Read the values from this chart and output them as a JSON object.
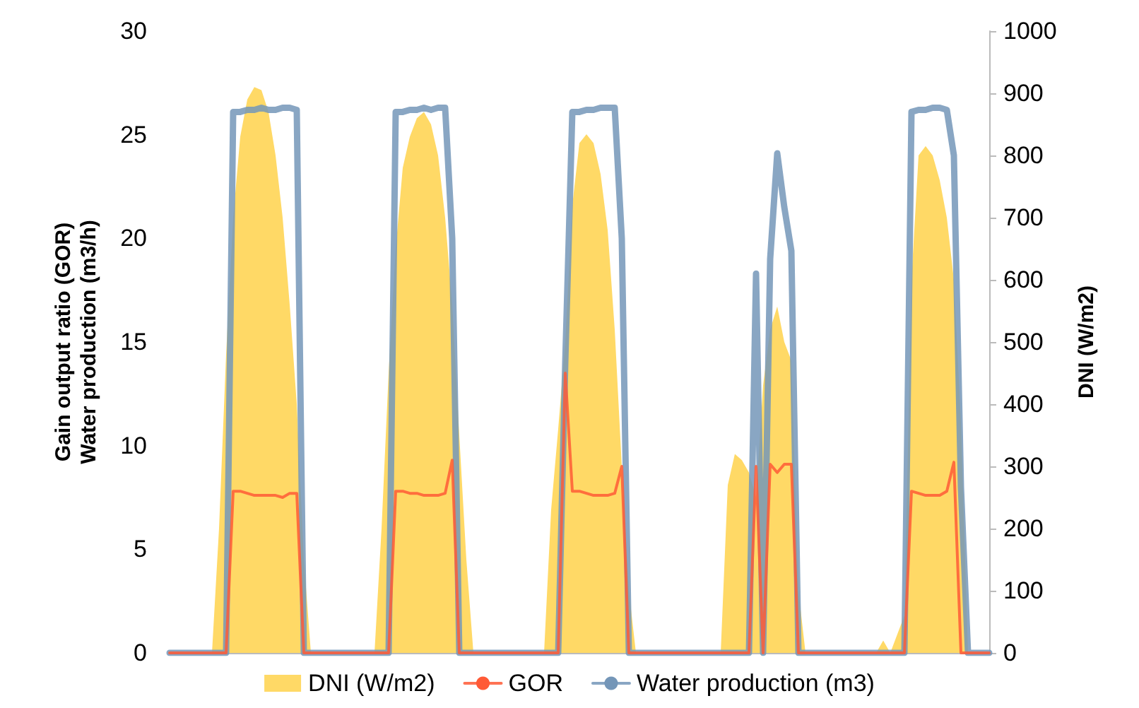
{
  "chart_data": {
    "type": "line",
    "ylabel": "Gain output ratio (GOR)\nWater production (m3/h)",
    "y2label": "DNI (W/m2)",
    "categories": [
      null,
      null,
      null,
      null,
      null,
      null,
      null,
      null,
      null,
      null,
      null,
      null,
      null,
      null,
      null,
      null,
      null,
      null,
      null,
      null,
      null,
      null,
      null,
      null,
      null,
      null,
      null,
      null,
      null,
      null,
      null,
      null,
      null,
      null,
      null,
      null,
      null,
      null,
      null,
      null,
      null,
      null,
      null,
      null,
      null,
      null,
      null,
      null,
      null,
      null,
      null,
      null,
      null,
      null,
      null,
      null,
      null,
      null,
      null,
      null,
      null,
      null,
      null,
      null,
      null,
      null,
      null,
      null,
      null,
      null,
      null,
      null,
      null,
      null,
      null,
      null,
      null,
      null,
      null,
      null,
      null,
      null,
      null,
      null,
      null,
      null,
      null,
      null,
      null,
      null,
      null,
      null,
      null,
      null,
      null,
      null,
      null,
      null,
      null,
      null,
      null,
      null,
      null,
      null,
      null,
      null,
      null,
      null,
      null,
      null,
      null,
      null,
      null,
      null,
      null,
      null,
      null
    ],
    "series": [
      {
        "name": "DNI (W/m2)",
        "type": "area",
        "axis": "y2",
        "color": "#ffd966",
        "values": [
          0,
          0,
          0,
          0,
          0,
          0,
          0,
          200,
          480,
          700,
          830,
          890,
          910,
          905,
          870,
          800,
          700,
          560,
          400,
          150,
          0,
          0,
          0,
          0,
          0,
          0,
          0,
          0,
          0,
          0,
          200,
          450,
          650,
          780,
          830,
          860,
          870,
          850,
          800,
          700,
          560,
          350,
          150,
          0,
          0,
          0,
          0,
          0,
          0,
          0,
          0,
          0,
          0,
          0,
          230,
          360,
          500,
          720,
          820,
          834,
          820,
          770,
          680,
          520,
          300,
          100,
          0,
          0,
          0,
          0,
          0,
          0,
          0,
          0,
          0,
          0,
          0,
          0,
          0,
          270,
          320,
          310,
          290,
          250,
          430,
          520,
          557,
          500,
          470,
          100,
          0,
          0,
          0,
          0,
          0,
          0,
          0,
          0,
          0,
          0,
          0,
          20,
          0,
          30,
          60,
          600,
          800,
          815,
          800,
          760,
          700,
          600,
          370,
          0,
          0,
          0,
          0
        ]
      },
      {
        "name": "GOR",
        "color": "#ff5a36",
        "values": [
          0,
          0,
          0,
          0,
          0,
          0,
          0,
          0,
          0,
          7.8,
          7.8,
          7.7,
          7.6,
          7.6,
          7.6,
          7.6,
          7.5,
          7.7,
          7.7,
          0,
          0,
          0,
          0,
          0,
          0,
          0,
          0,
          0,
          0,
          0,
          0,
          0,
          7.8,
          7.8,
          7.7,
          7.7,
          7.6,
          7.6,
          7.6,
          7.7,
          9.3,
          0,
          0,
          0,
          0,
          0,
          0,
          0,
          0,
          0,
          0,
          0,
          0,
          0,
          0,
          0,
          13.5,
          7.8,
          7.8,
          7.7,
          7.6,
          7.6,
          7.6,
          7.7,
          9,
          0,
          0,
          0,
          0,
          0,
          0,
          0,
          0,
          0,
          0,
          0,
          0,
          0,
          0,
          0,
          0,
          0,
          0,
          9,
          0,
          9.1,
          8.7,
          9.1,
          9.1,
          0,
          0,
          0,
          0,
          0,
          0,
          0,
          0,
          0,
          0,
          0,
          0,
          0,
          0,
          0,
          0,
          7.8,
          7.7,
          7.6,
          7.6,
          7.6,
          7.8,
          9.2,
          0,
          0,
          0,
          0,
          0
        ]
      },
      {
        "name": "Water production (m3)",
        "color": "#7496b8",
        "values": [
          0,
          0,
          0,
          0,
          0,
          0,
          0,
          0,
          0,
          26.1,
          26.1,
          26.2,
          26.2,
          26.3,
          26.2,
          26.2,
          26.3,
          26.3,
          26.2,
          0,
          0,
          0,
          0,
          0,
          0,
          0,
          0,
          0,
          0,
          0,
          0,
          0,
          26.1,
          26.1,
          26.2,
          26.2,
          26.3,
          26.2,
          26.3,
          26.3,
          20,
          0,
          0,
          0,
          0,
          0,
          0,
          0,
          0,
          0,
          0,
          0,
          0,
          0,
          0,
          0,
          14,
          26.1,
          26.1,
          26.2,
          26.2,
          26.3,
          26.3,
          26.3,
          20,
          0,
          0,
          0,
          0,
          0,
          0,
          0,
          0,
          0,
          0,
          0,
          0,
          0,
          0,
          0,
          0,
          0,
          0,
          18.3,
          0,
          19,
          24.1,
          21.5,
          19.4,
          0,
          0,
          0,
          0,
          0,
          0,
          0,
          0,
          0,
          0,
          0,
          0,
          0,
          0,
          0,
          0,
          26.1,
          26.2,
          26.2,
          26.3,
          26.3,
          26.2,
          24,
          8,
          0,
          0,
          0,
          0
        ]
      }
    ],
    "ylim": [
      0,
      30
    ],
    "yticks": [
      0,
      5,
      10,
      15,
      20,
      25,
      30
    ],
    "y2lim": [
      0,
      1000
    ],
    "y2ticks": [
      0,
      100,
      200,
      300,
      400,
      500,
      600,
      700,
      800,
      900,
      {
        "value": 1000,
        "label": "1000"
      }
    ],
    "grid": false,
    "legend": "bottom",
    "marker": "none",
    "line_style": "solid"
  }
}
